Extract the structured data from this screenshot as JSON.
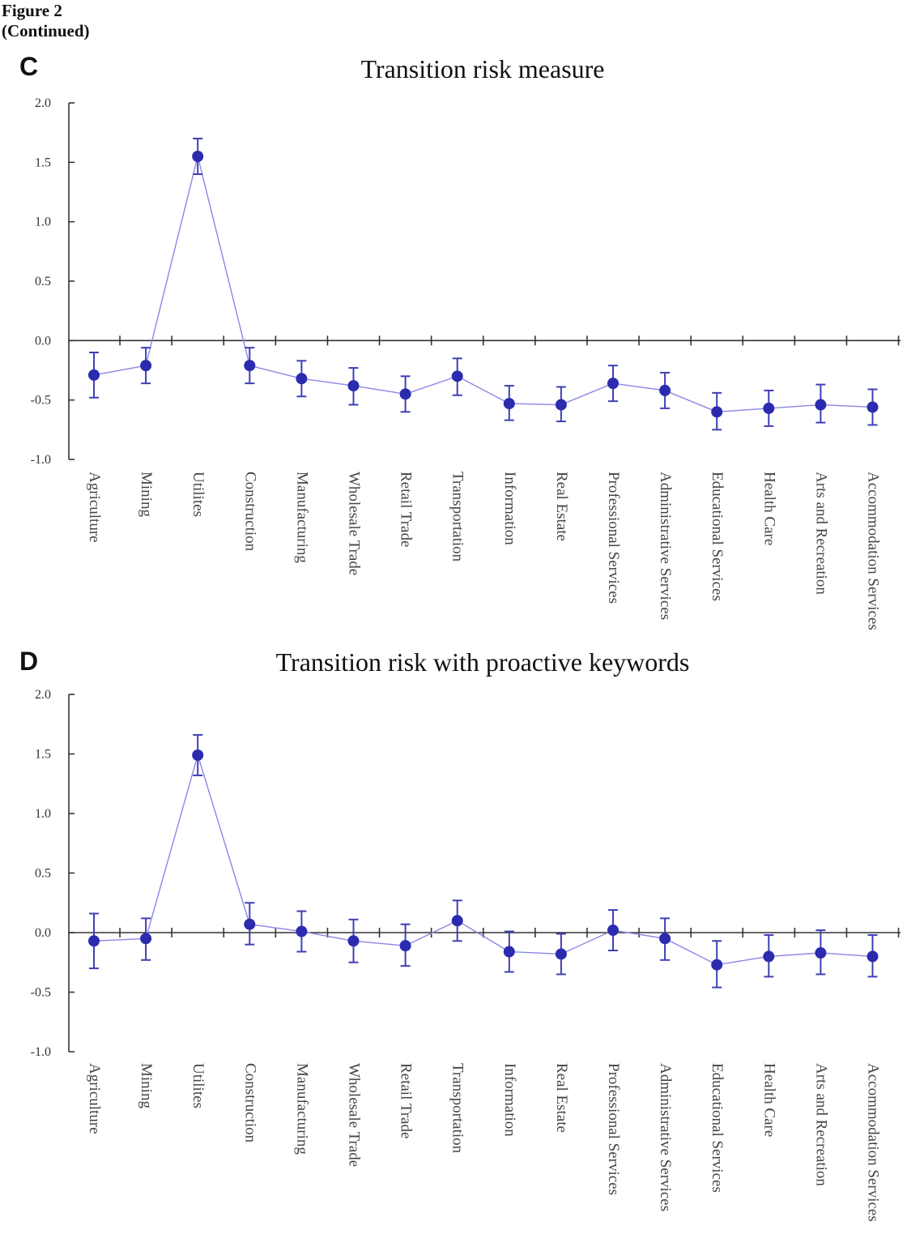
{
  "figure": {
    "label": "Figure 2",
    "sublabel": "(Continued)"
  },
  "chart_data": [
    {
      "type": "line",
      "panel": "C",
      "title": "Transition risk measure",
      "xlabel": "",
      "ylabel": "",
      "ylim": [
        -1.0,
        2.0
      ],
      "yticks": [
        "2.0",
        "1.5",
        "1.0",
        "0.5",
        "0.0",
        "-0.5",
        "-1.0"
      ],
      "ytick_values": [
        2.0,
        1.5,
        1.0,
        0.5,
        0.0,
        -0.5,
        -1.0
      ],
      "categories": [
        "Agriculture",
        "Mining",
        "Utilites",
        "Construction",
        "Manufacturing",
        "Wholesale Trade",
        "Retail Trade",
        "Transportation",
        "Information",
        "Real Estate",
        "Professional Services",
        "Administrative  Services",
        "Educational Services",
        "Health Care",
        "Arts and Recreation",
        "Accommodation Services"
      ],
      "series": [
        {
          "name": "Transition risk measure",
          "values": [
            -0.29,
            -0.21,
            1.55,
            -0.21,
            -0.32,
            -0.38,
            -0.45,
            -0.3,
            -0.53,
            -0.54,
            -0.36,
            -0.42,
            -0.6,
            -0.57,
            -0.54,
            -0.56
          ],
          "err_low": [
            -0.48,
            -0.36,
            1.4,
            -0.36,
            -0.47,
            -0.54,
            -0.6,
            -0.46,
            -0.67,
            -0.68,
            -0.51,
            -0.57,
            -0.75,
            -0.72,
            -0.69,
            -0.71
          ],
          "err_high": [
            -0.1,
            -0.06,
            1.7,
            -0.06,
            -0.17,
            -0.23,
            -0.3,
            -0.15,
            -0.38,
            -0.39,
            -0.21,
            -0.27,
            -0.44,
            -0.42,
            -0.37,
            -0.41
          ]
        }
      ]
    },
    {
      "type": "line",
      "panel": "D",
      "title": "Transition risk with proactive keywords",
      "xlabel": "",
      "ylabel": "",
      "ylim": [
        -1.0,
        2.0
      ],
      "yticks": [
        "2.0",
        "1.5",
        "1.0",
        "0.5",
        "0.0",
        "-0.5",
        "-1.0"
      ],
      "ytick_values": [
        2.0,
        1.5,
        1.0,
        0.5,
        0.0,
        -0.5,
        -1.0
      ],
      "categories": [
        "Agriculture",
        "Mining",
        "Utilites",
        "Construction",
        "Manufacturing",
        "Wholesale Trade",
        "Retail Trade",
        "Transportation",
        "Information",
        "Real Estate",
        "Professional Services",
        "Administrative  Services",
        "Educational Services",
        "Health Care",
        "Arts and Recreation",
        "Accommodation Services"
      ],
      "series": [
        {
          "name": "Transition risk with proactive keywords",
          "values": [
            -0.07,
            -0.05,
            1.49,
            0.07,
            0.01,
            -0.07,
            -0.11,
            0.1,
            -0.16,
            -0.18,
            0.02,
            -0.05,
            -0.27,
            -0.2,
            -0.17,
            -0.2
          ],
          "err_low": [
            -0.3,
            -0.23,
            1.32,
            -0.1,
            -0.16,
            -0.25,
            -0.28,
            -0.07,
            -0.33,
            -0.35,
            -0.15,
            -0.23,
            -0.46,
            -0.37,
            -0.35,
            -0.37
          ],
          "err_high": [
            0.16,
            0.12,
            1.66,
            0.25,
            0.18,
            0.11,
            0.07,
            0.27,
            0.01,
            -0.01,
            0.19,
            0.12,
            -0.07,
            -0.02,
            0.02,
            -0.02
          ]
        }
      ]
    }
  ]
}
